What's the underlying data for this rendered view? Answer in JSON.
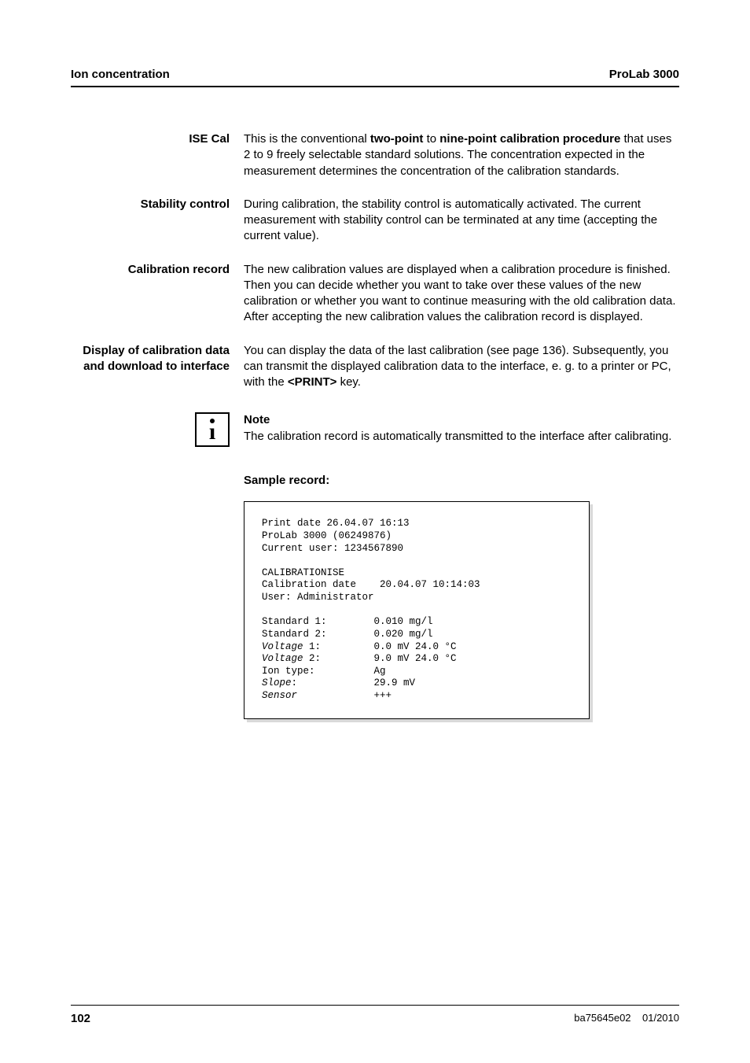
{
  "header": {
    "left": "Ion concentration",
    "right": "ProLab 3000"
  },
  "sections": {
    "ise_cal": {
      "label": "ISE Cal",
      "text_pre": "This is the conventional ",
      "bold1": "two-point",
      "text_mid1": " to ",
      "bold2": "nine-point calibration procedure",
      "text_post": " that uses 2 to 9 freely selectable standard solutions. The concentration expected in the measurement determines the concentration of the calibration standards."
    },
    "stability": {
      "label": "Stability control",
      "text": "During calibration, the stability control is automatically activated. The current measurement with stability control can be terminated at any time (accepting the current value)."
    },
    "cal_record": {
      "label": "Calibration record",
      "text": "The new calibration values are displayed when a calibration procedure is finished. Then you can decide whether you want to take over these values of the new calibration or whether you want to continue measuring with the old calibration data. After accepting the new calibration values the calibration record is displayed."
    },
    "display": {
      "label": "Display of calibration data and download to interface",
      "text_pre": "You can display the data of the last calibration (see page 136). Subsequently, you can transmit the displayed calibration data to the interface, e. g. to a printer or PC, with the ",
      "bold1": "<PRINT>",
      "text_post": " key."
    }
  },
  "note": {
    "heading": "Note",
    "text": "The calibration record is automatically transmitted to the interface after calibrating."
  },
  "sample": {
    "heading": "Sample record:",
    "line1": "Print date 26.04.07 16:13",
    "line2": "ProLab 3000 (06249876)",
    "line3": "Current user: 1234567890",
    "line5": "CALIBRATIONISE",
    "line6": "Calibration date    20.04.07 10:14:03",
    "line7": "User: Administrator",
    "line9a": "Standard 1:        0.010 mg/l",
    "line10a": "Standard 2:        0.020 mg/l",
    "line11_lbl": "Voltage",
    "line11_rest": " 1:         0.0 mV 24.0 °C",
    "line12_lbl": "Voltage",
    "line12_rest": " 2:         9.0 mV 24.0 °C",
    "line13": "Ion type:          Ag",
    "line14_lbl": "Slope",
    "line14_rest": ":             29.9 mV",
    "line15_lbl": "Sensor",
    "line15_rest": "             +++"
  },
  "footer": {
    "page": "102",
    "doc": "ba75645e02",
    "date": "01/2010"
  },
  "colors": {
    "text": "#000000",
    "bg": "#ffffff",
    "shadow": "#d9d9d9"
  }
}
